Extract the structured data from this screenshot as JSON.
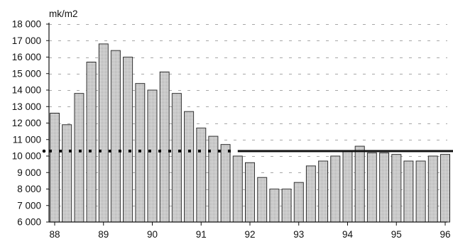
{
  "chart_data": {
    "type": "bar",
    "title": "",
    "xlabel": "",
    "ylabel": "mk/m2",
    "ylim": [
      6000,
      18000
    ],
    "y_ticks": [
      6000,
      7000,
      8000,
      9000,
      10000,
      11000,
      12000,
      13000,
      14000,
      15000,
      16000,
      17000,
      18000
    ],
    "y_tick_labels": [
      "6 000",
      "7 000",
      "8 000",
      "9 000",
      "10 000",
      "11 000",
      "12 000",
      "13 000",
      "14 000",
      "15 000",
      "16 000",
      "17 000",
      "18 000"
    ],
    "x_tick_labels": [
      "88",
      "89",
      "90",
      "91",
      "92",
      "93",
      "94",
      "95",
      "96"
    ],
    "x_range": [
      1988.0,
      1996.0
    ],
    "grid": "horizontal dashed",
    "bar_fill": "#cccccc",
    "bar_stroke": "#333333",
    "series": [
      {
        "x": [
          1988.0,
          1988.25,
          1988.5,
          1988.75,
          1989.0,
          1989.25,
          1989.5,
          1989.75,
          1990.0,
          1990.25,
          1990.5,
          1990.75,
          1991.0,
          1991.25,
          1991.5,
          1991.75,
          1992.0,
          1992.25,
          1992.5,
          1992.75,
          1993.0,
          1993.25,
          1993.5,
          1993.75,
          1994.0,
          1994.25,
          1994.5,
          1994.75,
          1995.0,
          1995.25,
          1995.5,
          1995.75,
          1996.0
        ],
        "values": [
          12600,
          11900,
          13800,
          15700,
          16800,
          16400,
          16000,
          14400,
          14000,
          15100,
          13800,
          12700,
          11700,
          11200,
          10700,
          10000,
          9600,
          8700,
          8000,
          8000,
          8400,
          9400,
          9700,
          10000,
          10300,
          10600,
          10200,
          10200,
          10100,
          9700,
          9700,
          10000,
          10100
        ]
      }
    ],
    "reference_line": {
      "value": 10300,
      "color": "#111111",
      "style_before": "dotted",
      "solid_from_x": 1991.75
    }
  }
}
